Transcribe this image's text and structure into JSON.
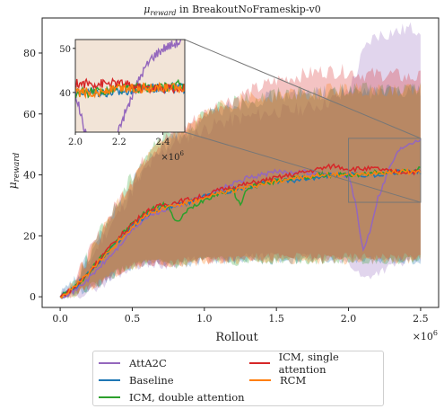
{
  "chart_data": {
    "type": "line",
    "title": "μ_reward in BreakoutNoFrameskip-v0",
    "title_parts": {
      "symbol": "μ",
      "subscript": "reward",
      "rest": " in BreakoutNoFrameskip-v0"
    },
    "xlabel": "Rollout",
    "ylabel": "μ_reward",
    "ylabel_parts": {
      "symbol": "μ",
      "subscript": "reward"
    },
    "x_multiplier": "×10^6",
    "x_multiplier_parts": {
      "base": "×10",
      "exp": "6"
    },
    "xlim": [
      -0.125,
      2.625
    ],
    "ylim": [
      -3.5,
      91.5
    ],
    "xticks": [
      0.0,
      0.5,
      1.0,
      1.5,
      2.0,
      2.5
    ],
    "xtick_labels": [
      "0.0",
      "0.5",
      "1.0",
      "1.5",
      "2.0",
      "2.5"
    ],
    "yticks": [
      0,
      20,
      40,
      60,
      80
    ],
    "ytick_labels": [
      "0",
      "20",
      "40",
      "60",
      "80"
    ],
    "grid": false,
    "legend": {
      "placement": "bottom-outside",
      "columns": 2
    },
    "series": [
      {
        "name": "AttA2C",
        "color": "#9467bd",
        "x": [
          0,
          0.1,
          0.2,
          0.3,
          0.4,
          0.5,
          0.6,
          0.7,
          0.8,
          0.9,
          1.0,
          1.1,
          1.2,
          1.3,
          1.4,
          1.5,
          1.6,
          1.7,
          1.8,
          1.9,
          2.0,
          2.05,
          2.1,
          2.15,
          2.2,
          2.25,
          2.3,
          2.35,
          2.4,
          2.45,
          2.5
        ],
        "y": [
          0,
          2,
          6,
          11,
          16,
          22,
          26,
          28,
          30,
          31,
          33,
          35,
          37,
          39,
          40,
          41,
          41,
          41,
          40,
          40,
          40,
          30,
          15,
          22,
          32,
          38,
          44,
          48,
          50,
          51,
          52
        ],
        "upper": [
          0,
          4,
          11,
          20,
          27,
          35,
          42,
          47,
          51,
          53,
          55,
          57,
          58,
          59,
          60,
          61,
          61,
          62,
          63,
          65,
          68,
          73,
          80,
          84,
          86,
          86,
          87,
          87,
          88,
          88,
          88
        ],
        "lower": [
          0,
          0,
          2,
          4,
          7,
          10,
          11,
          10,
          11,
          12,
          12,
          12,
          12,
          13,
          13,
          13,
          13,
          13,
          12,
          12,
          11,
          9,
          6,
          7,
          8,
          9,
          10,
          11,
          11,
          12,
          12
        ]
      },
      {
        "name": "Baseline",
        "color": "#1f77b4",
        "x": [
          0,
          0.1,
          0.2,
          0.3,
          0.4,
          0.5,
          0.6,
          0.7,
          0.8,
          0.9,
          1.0,
          1.1,
          1.2,
          1.3,
          1.4,
          1.5,
          1.6,
          1.7,
          1.8,
          1.9,
          2.0,
          2.1,
          2.2,
          2.3,
          2.4,
          2.5
        ],
        "y": [
          0,
          3,
          8,
          13,
          18,
          23,
          27,
          29,
          30,
          31,
          33,
          34,
          35,
          36,
          37,
          38,
          38,
          39,
          39,
          40,
          40,
          40,
          40,
          41,
          41,
          41
        ],
        "upper": [
          0,
          5,
          13,
          22,
          29,
          37,
          44,
          49,
          52,
          55,
          58,
          61,
          63,
          64,
          65,
          66,
          66,
          67,
          67,
          67,
          67,
          67,
          67,
          68,
          68,
          68
        ],
        "lower": [
          0,
          1,
          3,
          5,
          8,
          10,
          11,
          11,
          11,
          11,
          12,
          12,
          12,
          12,
          12,
          12,
          12,
          12,
          12,
          12,
          12,
          12,
          12,
          12,
          12,
          12
        ]
      },
      {
        "name": "ICM, double attention",
        "color": "#2ca02c",
        "x": [
          0,
          0.1,
          0.2,
          0.3,
          0.4,
          0.5,
          0.6,
          0.7,
          0.75,
          0.8,
          0.9,
          1.0,
          1.1,
          1.2,
          1.25,
          1.3,
          1.4,
          1.5,
          1.6,
          1.7,
          1.8,
          1.9,
          2.0,
          2.1,
          2.2,
          2.3,
          2.4,
          2.5
        ],
        "y": [
          0,
          3,
          8,
          14,
          19,
          24,
          28,
          30,
          30,
          24,
          29,
          32,
          34,
          35,
          30,
          36,
          37,
          38,
          39,
          39,
          40,
          40,
          40,
          40,
          41,
          41,
          41,
          42
        ],
        "upper": [
          0,
          5,
          14,
          23,
          31,
          40,
          47,
          52,
          54,
          54,
          56,
          59,
          62,
          64,
          63,
          65,
          66,
          67,
          67,
          67,
          67,
          67,
          68,
          68,
          68,
          68,
          68,
          68
        ],
        "lower": [
          0,
          1,
          3,
          5,
          8,
          10,
          11,
          11,
          11,
          10,
          11,
          12,
          12,
          12,
          11,
          12,
          12,
          12,
          12,
          12,
          12,
          12,
          12,
          12,
          12,
          12,
          12,
          12
        ]
      },
      {
        "name": "ICM, single attention",
        "color": "#d62728",
        "x": [
          0,
          0.1,
          0.2,
          0.3,
          0.4,
          0.5,
          0.6,
          0.7,
          0.8,
          0.9,
          1.0,
          1.1,
          1.2,
          1.3,
          1.4,
          1.5,
          1.6,
          1.7,
          1.8,
          1.9,
          2.0,
          2.1,
          2.2,
          2.3,
          2.4,
          2.5
        ],
        "y": [
          0,
          3,
          8,
          14,
          19,
          24,
          28,
          30,
          31,
          32,
          33,
          35,
          36,
          37,
          38,
          39,
          40,
          41,
          42,
          43,
          42,
          42,
          42,
          41,
          41,
          41
        ],
        "upper": [
          0,
          5,
          14,
          23,
          31,
          39,
          46,
          51,
          54,
          57,
          60,
          63,
          65,
          67,
          69,
          71,
          72,
          73,
          74,
          74,
          74,
          73,
          73,
          73,
          72,
          72
        ],
        "lower": [
          0,
          1,
          3,
          5,
          8,
          10,
          11,
          11,
          11,
          12,
          12,
          12,
          13,
          13,
          13,
          13,
          13,
          13,
          13,
          13,
          13,
          13,
          13,
          13,
          13,
          13
        ]
      },
      {
        "name": "RCM",
        "color": "#ff7f0e",
        "x": [
          0,
          0.1,
          0.2,
          0.3,
          0.4,
          0.5,
          0.6,
          0.7,
          0.8,
          0.9,
          1.0,
          1.1,
          1.2,
          1.3,
          1.4,
          1.5,
          1.6,
          1.7,
          1.8,
          1.9,
          2.0,
          2.1,
          2.2,
          2.3,
          2.4,
          2.5
        ],
        "y": [
          0,
          3,
          8,
          13,
          18,
          23,
          27,
          29,
          30,
          31,
          32,
          34,
          35,
          36,
          37,
          38,
          39,
          39,
          40,
          40,
          40,
          40,
          41,
          41,
          41,
          41
        ],
        "upper": [
          0,
          5,
          13,
          22,
          30,
          38,
          45,
          50,
          53,
          56,
          59,
          62,
          64,
          65,
          66,
          66,
          67,
          67,
          67,
          68,
          68,
          68,
          68,
          68,
          68,
          68
        ],
        "lower": [
          0,
          1,
          3,
          5,
          8,
          10,
          11,
          11,
          11,
          11,
          12,
          12,
          12,
          12,
          12,
          12,
          12,
          12,
          12,
          12,
          12,
          12,
          12,
          12,
          12,
          12
        ]
      }
    ],
    "inset": {
      "xlim": [
        2.0,
        2.5
      ],
      "ylim": [
        31,
        52
      ],
      "xticks": [
        2.0,
        2.2,
        2.4
      ],
      "xtick_labels": [
        "2.0",
        "2.2",
        "2.4"
      ],
      "yticks": [
        40,
        50
      ],
      "ytick_labels": [
        "40",
        "50"
      ],
      "x_multiplier": "×10^6",
      "x_multiplier_parts": {
        "base": "×10",
        "exp": "6"
      }
    }
  },
  "legend_order": [
    0,
    1,
    2,
    3,
    4
  ]
}
